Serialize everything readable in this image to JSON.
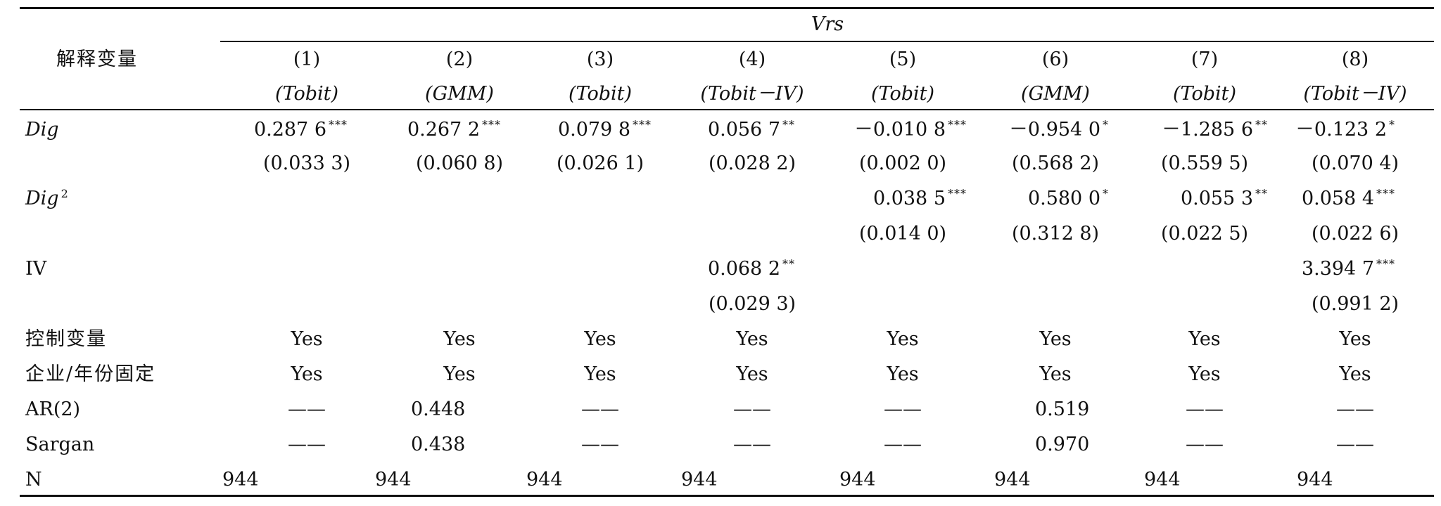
{
  "table": {
    "row_header_label": "解释变量",
    "group_header": "Vrs",
    "columns": [
      {
        "num": "(1)",
        "method": "(Tobit)"
      },
      {
        "num": "(2)",
        "method": "(GMM)"
      },
      {
        "num": "(3)",
        "method": "(Tobit)"
      },
      {
        "num": "(4)",
        "method": "(Tobit－IV)"
      },
      {
        "num": "(5)",
        "method": "(Tobit)"
      },
      {
        "num": "(6)",
        "method": "(GMM)"
      },
      {
        "num": "(7)",
        "method": "(Tobit)"
      },
      {
        "num": "(8)",
        "method": "(Tobit－IV)"
      }
    ],
    "dig": {
      "label": "Dig",
      "coef": [
        {
          "v": "0.287 6",
          "s": "***"
        },
        {
          "v": "0.267 2",
          "s": "***"
        },
        {
          "v": "0.079 8",
          "s": "***"
        },
        {
          "v": "0.056 7",
          "s": "**"
        },
        {
          "v": "－0.010 8",
          "s": "***"
        },
        {
          "v": "－0.954 0",
          "s": "*"
        },
        {
          "v": "－1.285 6",
          "s": "**"
        },
        {
          "v": "－0.123 2",
          "s": "*"
        }
      ],
      "se": [
        "(0.033 3)",
        "(0.060 8)",
        "(0.026 1)",
        "(0.028 2)",
        "(0.002 0)",
        "(0.568 2)",
        "(0.559 5)",
        "(0.070 4)"
      ]
    },
    "dig2": {
      "label": "Dig",
      "exp": "2",
      "coef": [
        {
          "v": "0.038 5",
          "s": "***"
        },
        {
          "v": "0.580 0",
          "s": "*"
        },
        {
          "v": "0.055 3",
          "s": "**"
        },
        {
          "v": "0.058 4",
          "s": "***"
        }
      ],
      "se": [
        "(0.014 0)",
        "(0.312 8)",
        "(0.022 5)",
        "(0.022 6)"
      ]
    },
    "iv": {
      "label": "IV",
      "coef": [
        {
          "v": "0.068 2",
          "s": "**"
        },
        {
          "v": "3.394 7",
          "s": "***"
        }
      ],
      "se": [
        "(0.029 3)",
        "(0.991 2)"
      ]
    },
    "controls": {
      "label": "控制变量",
      "values": [
        "Yes",
        "Yes",
        "Yes",
        "Yes",
        "Yes",
        "Yes",
        "Yes",
        "Yes"
      ]
    },
    "fixed": {
      "label": "企业/年份固定",
      "values": [
        "Yes",
        "Yes",
        "Yes",
        "Yes",
        "Yes",
        "Yes",
        "Yes",
        "Yes"
      ]
    },
    "ar2": {
      "label": "AR(2)",
      "values": [
        "——",
        "0.448",
        "——",
        "——",
        "——",
        "0.519",
        "——",
        "——"
      ]
    },
    "sargan": {
      "label": "Sargan",
      "values": [
        "——",
        "0.438",
        "——",
        "——",
        "——",
        "0.970",
        "——",
        "——"
      ]
    },
    "n": {
      "label": "N",
      "values": [
        "944",
        "944",
        "944",
        "944",
        "944",
        "944",
        "944",
        "944"
      ]
    }
  }
}
